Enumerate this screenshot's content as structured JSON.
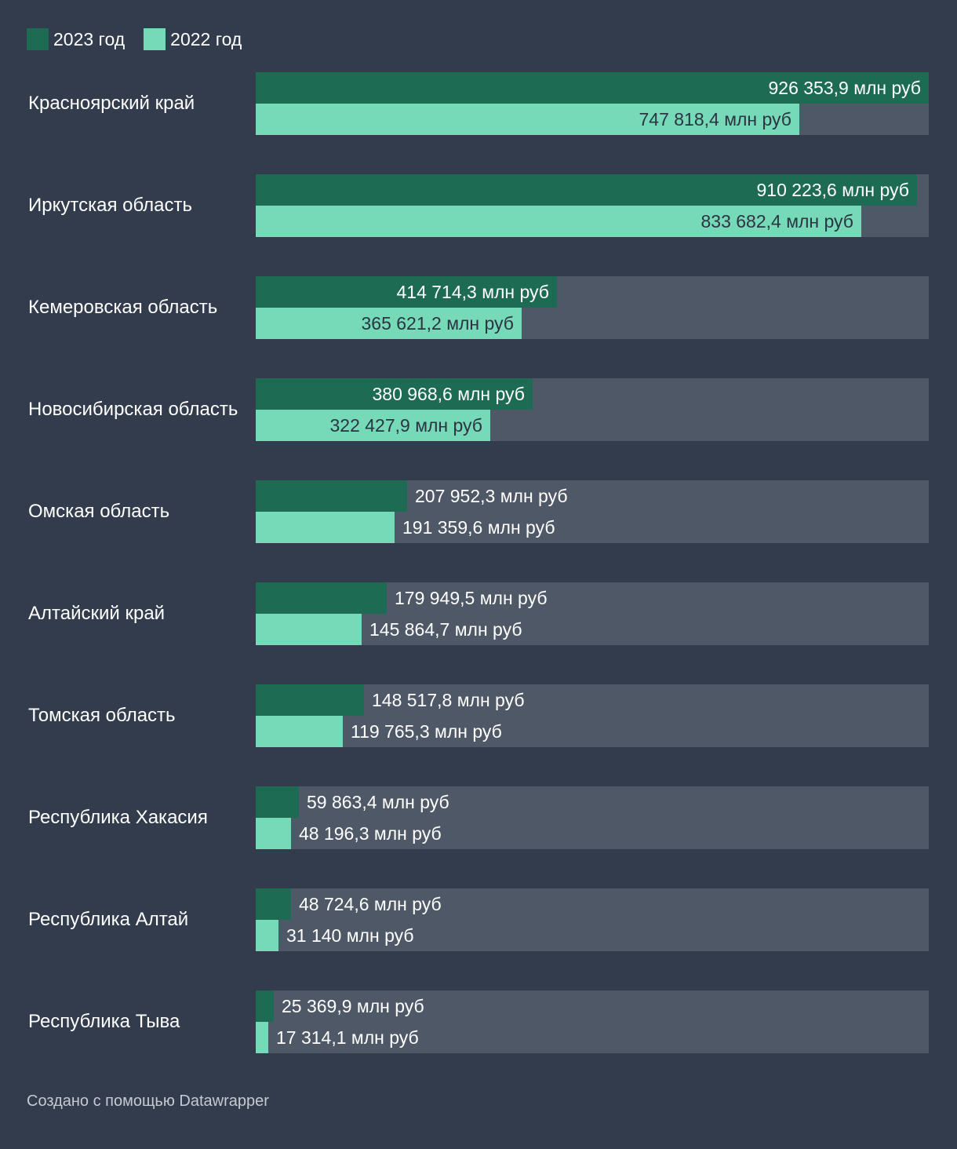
{
  "colors": {
    "background": "#323c4c",
    "track": "#4f5866",
    "series_2023": "#1e6b54",
    "series_2022": "#76d9b7",
    "text_on_2022": "#2b3442",
    "text": "#ffffff",
    "footer_text": "#c6cad1"
  },
  "legend": {
    "items": [
      {
        "label": "2023 год",
        "color": "#1e6b54"
      },
      {
        "label": "2022 год",
        "color": "#76d9b7"
      }
    ]
  },
  "chart_data": {
    "type": "bar",
    "orientation": "horizontal",
    "xlim": [
      0,
      926353.9
    ],
    "legend_position": "top-left",
    "categories": [
      "Красноярский край",
      "Иркутская область",
      "Кемеровская область",
      "Новосибирская область",
      "Омская область",
      "Алтайский край",
      "Томская область",
      "Республика Хакасия",
      "Республика Алтай",
      "Республика Тыва"
    ],
    "series": [
      {
        "name": "2023 год",
        "values": [
          926353.9,
          910223.6,
          414714.3,
          380968.6,
          207952.3,
          179949.5,
          148517.8,
          59863.4,
          48724.6,
          25369.9
        ],
        "labels": [
          "926 353,9 млн руб",
          "910 223,6 млн руб",
          "414 714,3 млн руб",
          "380 968,6 млн руб",
          "207 952,3 млн руб",
          "179 949,5 млн руб",
          "148 517,8 млн руб",
          "59 863,4 млн руб",
          "48 724,6 млн руб",
          "25 369,9 млн руб"
        ]
      },
      {
        "name": "2022 год",
        "values": [
          747818.4,
          833682.4,
          365621.2,
          322427.9,
          191359.6,
          145864.7,
          119765.3,
          48196.3,
          31140,
          17314.1
        ],
        "labels": [
          "747 818,4 млн руб",
          "833 682,4 млн руб",
          "365 621,2 млн руб",
          "322 427,9 млн руб",
          "191 359,6 млн руб",
          "145 864,7 млн руб",
          "119 765,3 млн руб",
          "48 196,3 млн руб",
          "31 140 млн руб",
          "17 314,1 млн руб"
        ]
      }
    ]
  },
  "footer": {
    "credit": "Создано с помощью Datawrapper"
  }
}
